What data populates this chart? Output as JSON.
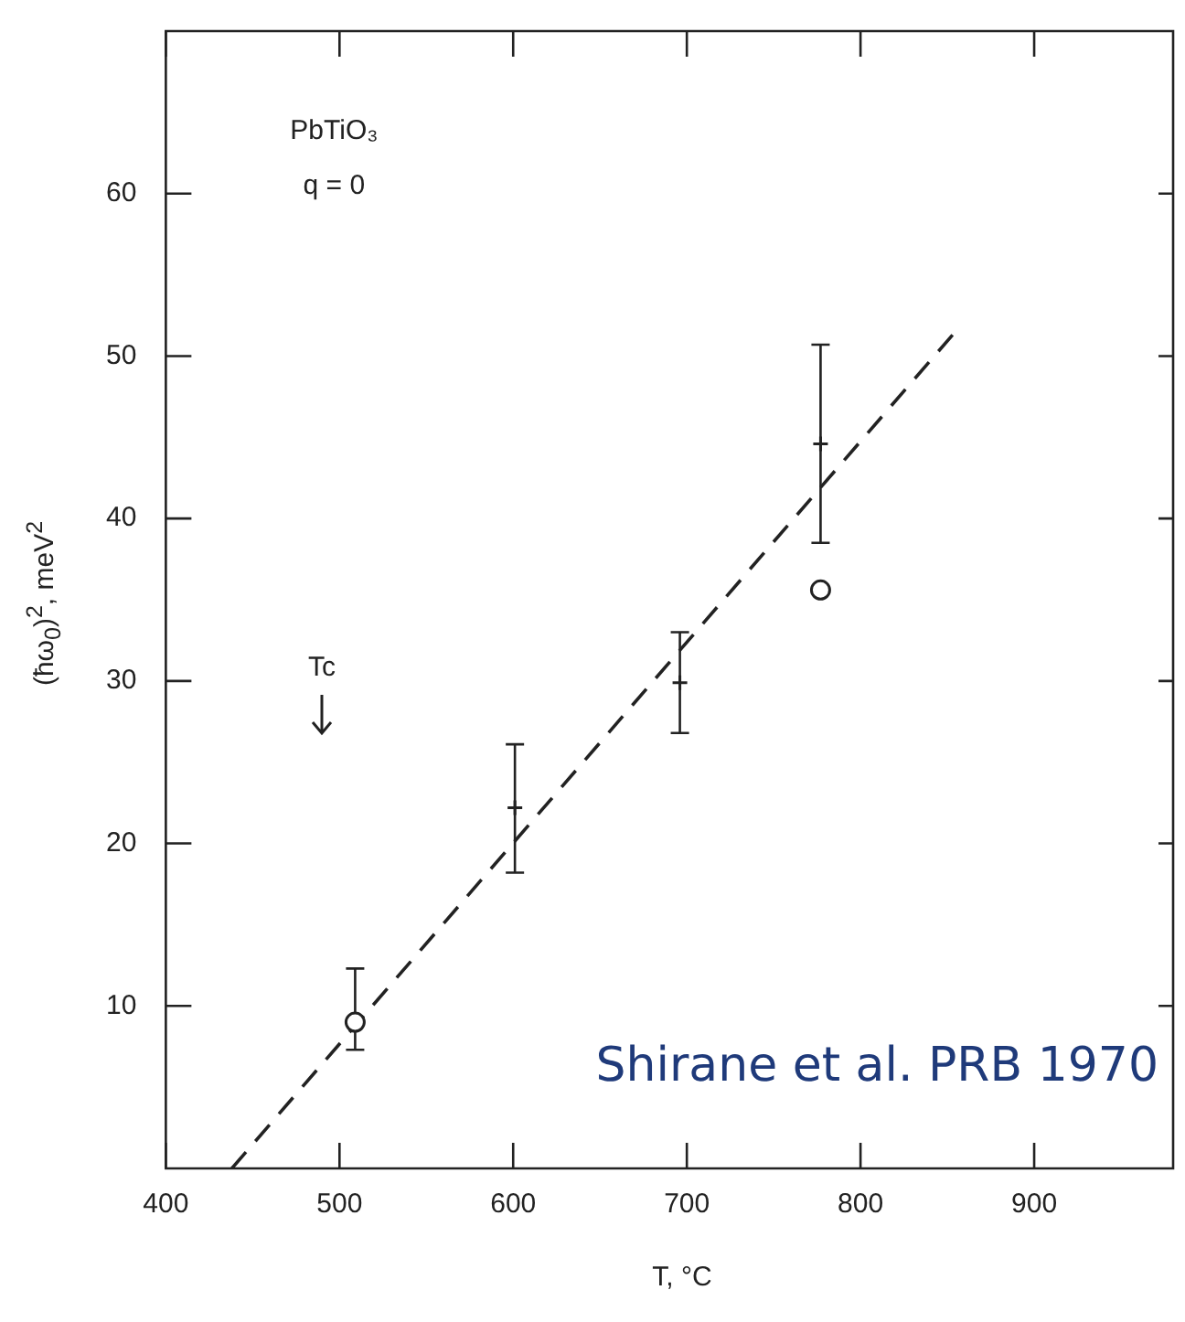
{
  "chart_data": {
    "type": "scatter",
    "xlabel": "T, °C",
    "ylabel": "(ħω$_{0}$)$^{2}$, meV$^{2}$",
    "xlim": [
      400,
      980
    ],
    "xticks": [
      400,
      500,
      600,
      700,
      800,
      900
    ],
    "ylim": [
      0,
      70
    ],
    "yticks": [
      10,
      20,
      30,
      40,
      50,
      60
    ],
    "series": [
      {
        "color": "#222222",
        "marker": "circle",
        "x": [
          509,
          777
        ],
        "values": [
          9.0,
          35.6
        ],
        "errors": [
          [
            7.3,
            12.3
          ],
          null
        ]
      },
      {
        "color": "#222222",
        "marker": "cross",
        "x": [
          601,
          696,
          777
        ],
        "values": [
          22.2,
          29.9,
          44.6
        ],
        "errors": [
          [
            18.2,
            26.1
          ],
          [
            26.8,
            33.0
          ],
          [
            38.5,
            50.7
          ]
        ]
      },
      {
        "type": "line",
        "color": "#222222",
        "marker": "none",
        "line_style": "dashed",
        "x": [
          438,
          853
        ],
        "values": [
          0,
          51.3
        ]
      }
    ],
    "annotations": [
      "PbTiO₃",
      "q = 0",
      "Tc",
      "Shirane et al. PRB 1970"
    ]
  }
}
